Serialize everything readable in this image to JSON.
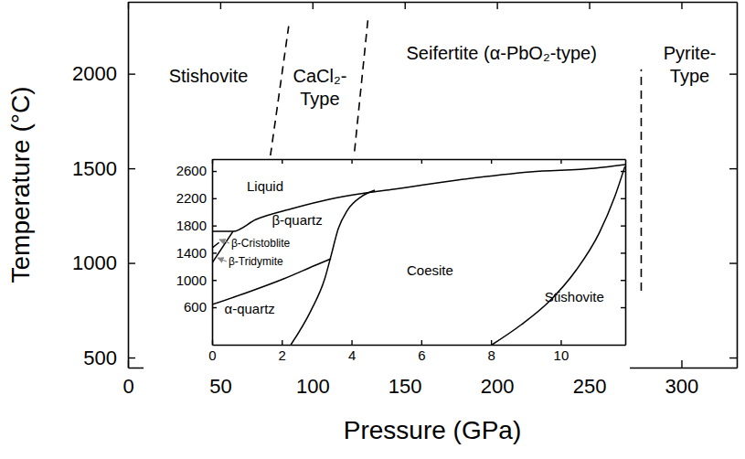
{
  "chart_data": [
    {
      "type": "line",
      "x_label": "Pressure (GPa)",
      "y_label": "Temperature (°C)",
      "xlim": [
        0,
        330
      ],
      "ylim": [
        447,
        2380
      ],
      "xticks": [
        0,
        50,
        100,
        150,
        200,
        250,
        300
      ],
      "yticks": [
        500,
        1000,
        1500,
        2000
      ],
      "series": [
        {
          "x": [
            77.2,
            87.1
          ],
          "values": [
            1566,
            2251
          ],
          "color": "#000000",
          "line_style": "dashed"
        },
        {
          "x": [
            122.8,
            130.2
          ],
          "values": [
            1590,
            2299
          ],
          "color": "#000000",
          "line_style": "dashed"
        },
        {
          "x": [
            278.2,
            278.2
          ],
          "values": [
            853,
            2024
          ],
          "color": "#000000",
          "line_style": "dashed"
        }
      ],
      "annotations": [
        {
          "text": [
            "Stishovite"
          ],
          "x": 43.6,
          "y": 1990
        },
        {
          "text": [
            "CaCl₂-",
            "Type"
          ],
          "x": 104,
          "y": 1990
        },
        {
          "text": [
            "Seifertite (α-PbO₂-type)"
          ],
          "x": 202.5,
          "y": 2111
        },
        {
          "text": [
            "Pyrite-",
            "Type"
          ],
          "x": 304.5,
          "y": 2111
        }
      ]
    },
    {
      "type": "line",
      "xlim": [
        0,
        11.85
      ],
      "ylim": [
        50,
        2775
      ],
      "xticks": [
        0,
        2,
        4,
        6,
        8,
        10
      ],
      "yticks": [
        600,
        1000,
        1400,
        1800,
        2200,
        2600
      ],
      "series": [
        {
          "x": [
            0,
            0.6,
            1.26,
            2.31,
            3.36,
            4.41,
            5.2,
            7.03,
            9.13,
            10.97,
            11.86
          ],
          "values": [
            1713,
            1714,
            1889,
            2050,
            2184,
            2278,
            2332,
            2466,
            2587,
            2640,
            2694
          ],
          "color": "#000000",
          "line_style": "solid"
        },
        {
          "x": [
            2.26,
            2.83,
            3.23,
            3.41,
            3.62,
            3.88,
            4.28,
            4.67
          ],
          "values": [
            50,
            546,
            1016,
            1352,
            1754,
            2023,
            2224,
            2318
          ],
          "color": "#000000",
          "line_style": "solid"
        },
        {
          "x": [
            0,
            1.0,
            2.05,
            2.97,
            3.41
          ],
          "values": [
            640,
            815,
            1016,
            1217,
            1311
          ],
          "color": "#000000",
          "line_style": "solid"
        },
        {
          "x": [
            0,
            0.6
          ],
          "values": [
            1250,
            1713
          ],
          "color": "#000000",
          "line_style": "solid"
        },
        {
          "x": [
            0,
            0.2
          ],
          "values": [
            1470,
            1550
          ],
          "color": "#000000",
          "line_style": "solid"
        },
        {
          "x": [
            8.03,
            8.87,
            9.66,
            10.45,
            11.1,
            11.55,
            11.84
          ],
          "values": [
            50,
            345,
            681,
            1150,
            1687,
            2224,
            2667
          ],
          "color": "#000000",
          "line_style": "solid"
        }
      ],
      "annotations": [
        {
          "text": [
            "Liquid"
          ],
          "x": 1.52,
          "y": 2372
        },
        {
          "text": [
            "β-quartz"
          ],
          "x": 2.44,
          "y": 1875
        },
        {
          "text": [
            "β-Cristoblite"
          ],
          "x": 0.55,
          "y": 1540,
          "arrow_to": [
            0.21,
            1593
          ]
        },
        {
          "text": [
            "β-Tridymite"
          ],
          "x": 0.47,
          "y": 1271,
          "arrow_to": [
            0.16,
            1325
          ]
        },
        {
          "text": [
            "Coesite"
          ],
          "x": 6.25,
          "y": 1137
        },
        {
          "text": [
            "α-quartz"
          ],
          "x": 1.08,
          "y": 573
        },
        {
          "text": [
            "Stishovite"
          ],
          "x": 10.39,
          "y": 748
        }
      ]
    }
  ]
}
